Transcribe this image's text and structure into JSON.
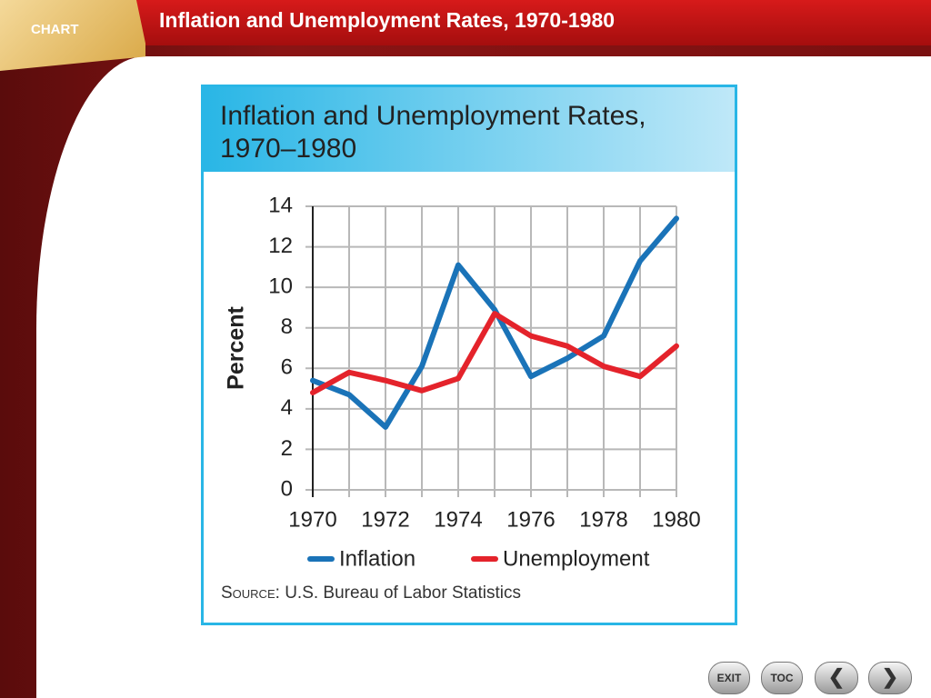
{
  "slide": {
    "tab": "CHART",
    "title": "Inflation and Unemployment Rates, 1970-1980",
    "buttons": [
      "EXIT",
      "TOC"
    ]
  },
  "chart_data": {
    "type": "line",
    "title": "Inflation and Unemployment Rates, 1970–1980",
    "y_label": "Percent",
    "x": [
      1970,
      1971,
      1972,
      1973,
      1974,
      1975,
      1976,
      1977,
      1978,
      1979,
      1980
    ],
    "series": [
      {
        "name": "Inflation",
        "color": "#1a73b8",
        "values": [
          5.4,
          4.7,
          3.1,
          6.1,
          11.1,
          8.9,
          5.6,
          6.5,
          7.6,
          11.3,
          13.4
        ]
      },
      {
        "name": "Unemployment",
        "color": "#e4232b",
        "values": [
          4.8,
          5.8,
          5.4,
          4.9,
          5.5,
          8.7,
          7.6,
          7.1,
          6.1,
          5.6,
          7.1
        ]
      }
    ],
    "xlim": [
      1970,
      1980
    ],
    "xticks": [
      1970,
      1972,
      1974,
      1976,
      1978,
      1980
    ],
    "ylim": [
      0,
      14
    ],
    "yticks": [
      0,
      2,
      4,
      6,
      8,
      10,
      12,
      14
    ],
    "grid": true,
    "source": {
      "label": "Source:",
      "text": "U.S. Bureau of Labor Statistics"
    }
  }
}
